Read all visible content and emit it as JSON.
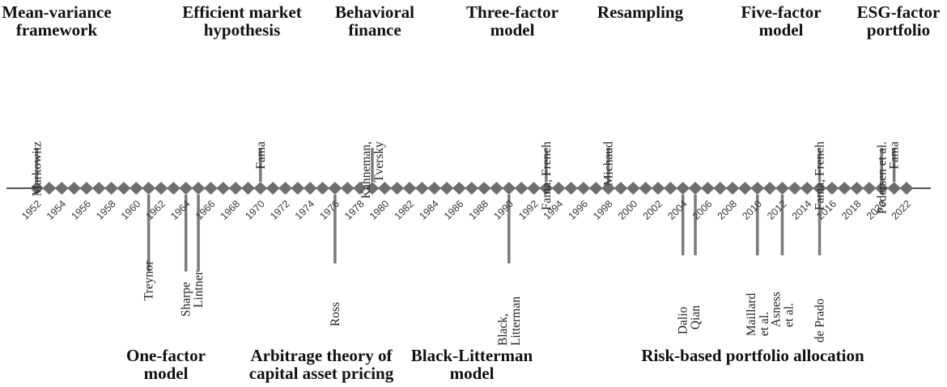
{
  "timeline": {
    "start_year": 1952,
    "end_year": 2022,
    "colors": {
      "axis": "#555555",
      "diamond": "#6e6e6e",
      "marker": "#7a7a7a",
      "text": "#111111"
    },
    "year_labels": [
      "1952",
      "1954",
      "1956",
      "1958",
      "1960",
      "1962",
      "1964",
      "1966",
      "1968",
      "1970",
      "1972",
      "1974",
      "1976",
      "1978",
      "1980",
      "1982",
      "1984",
      "1986",
      "1988",
      "1990",
      "1992",
      "1994",
      "1996",
      "1998",
      "2000",
      "2002",
      "2004",
      "2006",
      "2008",
      "2010",
      "2012",
      "2014",
      "2016",
      "2018",
      "2020",
      "2022"
    ],
    "events_above": [
      {
        "year": 1952,
        "names": [
          "Markowitz"
        ]
      },
      {
        "year": 1970,
        "names": [
          "Fama"
        ]
      },
      {
        "year": 1979,
        "names": [
          "Kahneman,",
          "Tversky"
        ]
      },
      {
        "year": 1993,
        "names": [
          "Fama, French"
        ]
      },
      {
        "year": 1998,
        "names": [
          "Michaud"
        ]
      },
      {
        "year": 2015,
        "names": [
          "Fama, French"
        ]
      },
      {
        "year": 2020,
        "names": [
          "Pedersen et al."
        ]
      },
      {
        "year": 2021,
        "names": [
          "Fama"
        ]
      }
    ],
    "events_below": [
      {
        "year": 1961,
        "names": [
          "Treynor"
        ]
      },
      {
        "year": 1964,
        "names": [
          "Sharpe"
        ]
      },
      {
        "year": 1965,
        "names": [
          "Lintner"
        ]
      },
      {
        "year": 1976,
        "names": [
          "Ross"
        ]
      },
      {
        "year": 1990,
        "names": [
          "Black,",
          "Litterman"
        ]
      },
      {
        "year": 2004,
        "names": [
          "Dalio"
        ]
      },
      {
        "year": 2005,
        "names": [
          "Qian"
        ]
      },
      {
        "year": 2010,
        "names": [
          "Maillard",
          "et al."
        ]
      },
      {
        "year": 2012,
        "names": [
          "Asness",
          "et al."
        ]
      },
      {
        "year": 2015,
        "names": [
          "de Prado"
        ]
      }
    ],
    "themes_above": [
      {
        "lines": [
          "Mean-variance",
          "framework"
        ]
      },
      {
        "lines": [
          "Efficient market",
          "hypothesis"
        ]
      },
      {
        "lines": [
          "Behavioral",
          "finance"
        ]
      },
      {
        "lines": [
          "Three-factor",
          "model"
        ]
      },
      {
        "lines": [
          "Resampling"
        ]
      },
      {
        "lines": [
          "Five-factor",
          "model"
        ]
      },
      {
        "lines": [
          "ESG-factor",
          "portfolio"
        ]
      }
    ],
    "themes_below": [
      {
        "lines": [
          "One-factor",
          "model"
        ]
      },
      {
        "lines": [
          "Arbitrage theory of",
          "capital asset pricing"
        ]
      },
      {
        "lines": [
          "Black-Litterman",
          "model"
        ]
      },
      {
        "lines": [
          "Risk-based portfolio allocation"
        ]
      }
    ]
  }
}
